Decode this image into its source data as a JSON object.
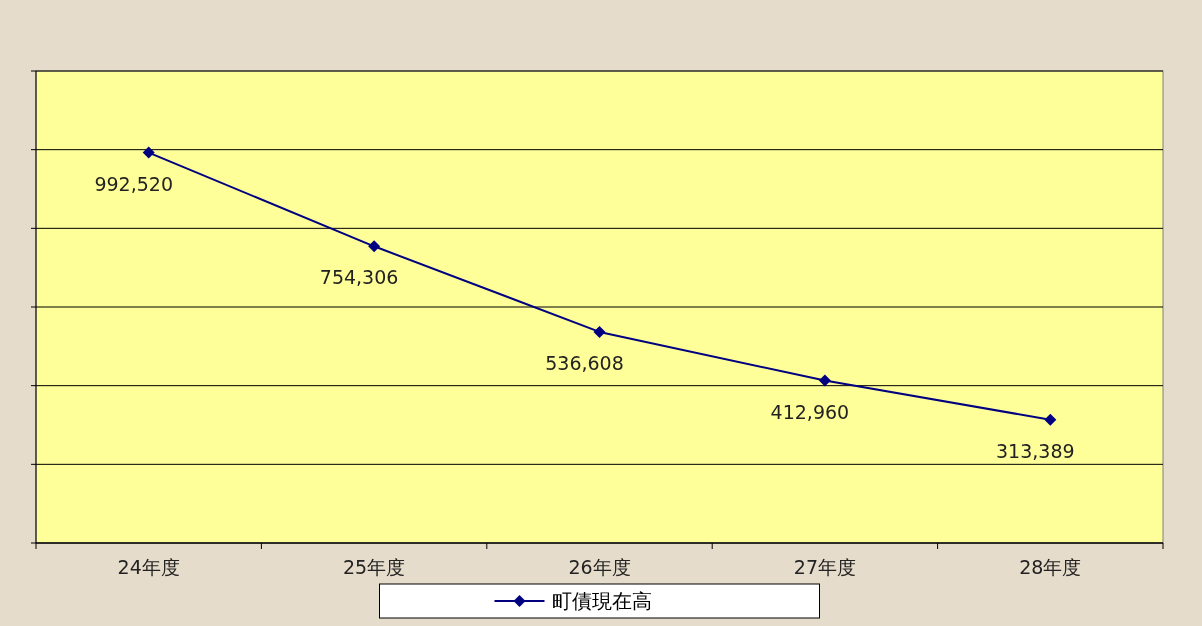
{
  "chart_data": {
    "type": "line",
    "categories": [
      "24年度",
      "25年度",
      "26年度",
      "27年度",
      "28年度"
    ],
    "series": [
      {
        "name": "町債現在高",
        "color": "#000080",
        "values": [
          992520,
          754306,
          536608,
          412960,
          313389
        ],
        "value_labels": [
          "992,520",
          "754,306",
          "536,608",
          "412,960",
          "313,389"
        ]
      }
    ],
    "tick_labels": "x",
    "grid": "y",
    "legend": "bottom",
    "marker": "diamond",
    "line_style": "solid"
  }
}
